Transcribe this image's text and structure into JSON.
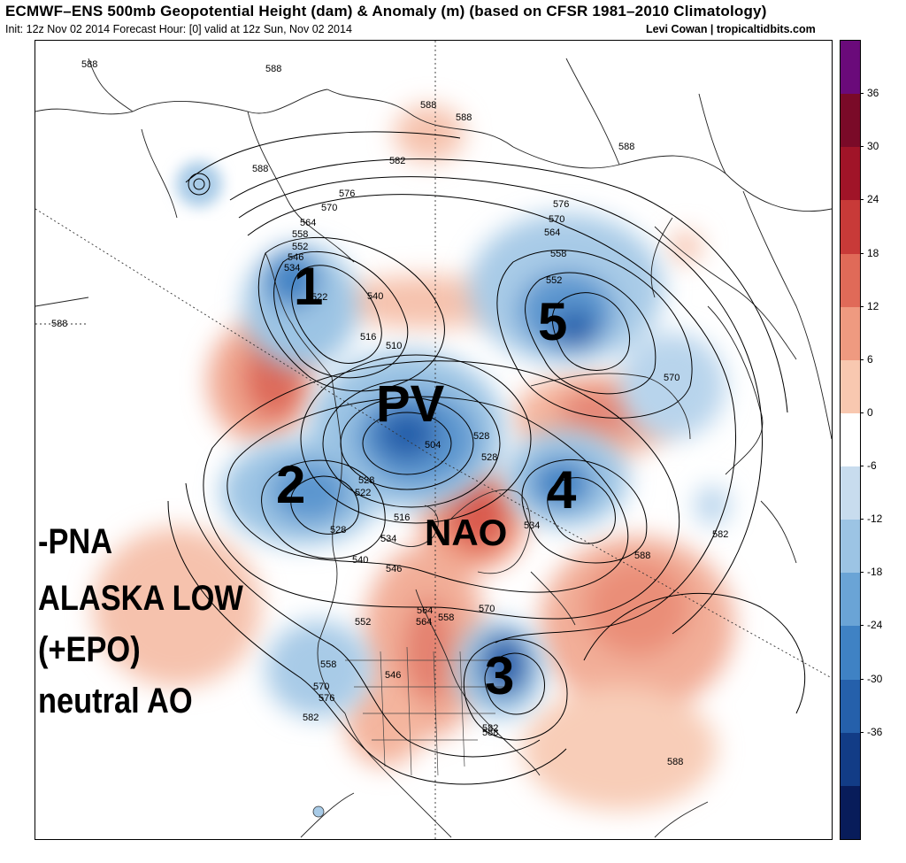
{
  "header": {
    "title": "ECMWF–ENS 500mb Geopotential Height (dam) & Anomaly (m) (based on CFSR 1981–2010 Climatology)",
    "init_line": "Init: 12z Nov 02 2014 Forecast Hour: [0] valid at 12z Sun, Nov 02 2014",
    "credit": "Levi Cowan | tropicaltidbits.com"
  },
  "colorbar": {
    "ticks": [
      "36",
      "30",
      "24",
      "18",
      "12",
      "6",
      "0",
      "-6",
      "-12",
      "-18",
      "-24",
      "-30",
      "-36"
    ],
    "colors": [
      "#6a0a7a",
      "#7a0a28",
      "#a01428",
      "#c83a38",
      "#e06a58",
      "#ef9a80",
      "#f8c8b0",
      "#ffffff",
      "#c8dcee",
      "#9cc4e4",
      "#6aa4d6",
      "#3f82c4",
      "#2560ab",
      "#123c86",
      "#081c5a"
    ]
  },
  "annotations": {
    "n1": "1",
    "n2": "2",
    "n3": "3",
    "n4": "4",
    "n5": "5",
    "pv": "PV",
    "nao": "NAO",
    "side_1": "-PNA",
    "side_2": "ALASKA LOW",
    "side_3": "(+EPO)",
    "side_4": "neutral AO"
  },
  "contour_labels": [
    "588",
    "588",
    "588",
    "588",
    "588",
    "582",
    "576",
    "570",
    "564",
    "558",
    "552",
    "546",
    "534",
    "522",
    "540",
    "516",
    "510",
    "504",
    "516",
    "522",
    "528",
    "528",
    "528",
    "534",
    "540",
    "546",
    "552",
    "558",
    "564",
    "570",
    "576",
    "582",
    "570",
    "588",
    "582",
    "528",
    "534",
    "588",
    "588",
    "588",
    "576",
    "570",
    "564",
    "558",
    "552",
    "582",
    "570",
    "546",
    "588",
    "558",
    "564"
  ]
}
